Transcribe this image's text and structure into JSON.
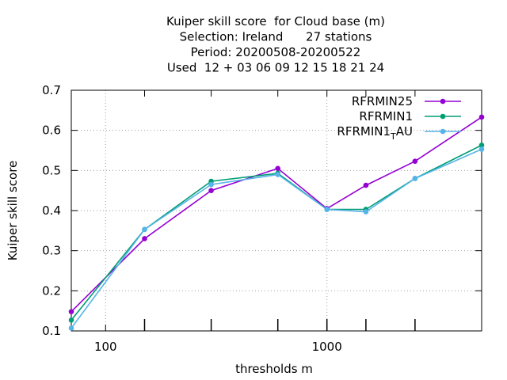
{
  "chart_data": {
    "type": "line",
    "title_lines": [
      "Kuiper skill score  for Cloud base (m)",
      "Selection: Ireland      27 stations",
      "Period: 20200508-20200522",
      "Used  12 + 03 06 09 12 15 18 21 24"
    ],
    "xlabel": "thresholds m",
    "ylabel": "Kuiper skill score",
    "x_scale": "log",
    "xlim": [
      70,
      5000
    ],
    "ylim": [
      0.1,
      0.7
    ],
    "y_ticks": [
      "0.1",
      "0.2",
      "0.3",
      "0.4",
      "0.5",
      "0.6",
      "0.7"
    ],
    "x_tick_labels": [
      "100",
      "1000"
    ],
    "x": [
      70,
      150,
      300,
      600,
      1000,
      1500,
      2500,
      5000
    ],
    "grid": true,
    "legend_position": "top-right",
    "series": [
      {
        "name": "RFRMIN25",
        "color": "#9400d3",
        "values": [
          0.148,
          0.33,
          0.45,
          0.505,
          0.405,
          0.463,
          0.523,
          0.633
        ]
      },
      {
        "name": "RFRMIN1",
        "color": "#009e73",
        "values": [
          0.127,
          0.353,
          0.473,
          0.493,
          0.403,
          0.403,
          0.48,
          0.563
        ]
      },
      {
        "name": "RFRMIN1_T AU",
        "legend_main": "RFRMIN1",
        "legend_sub": "T",
        "legend_tail": "AU",
        "color": "#56b4e9",
        "values": [
          0.107,
          0.353,
          0.465,
          0.49,
          0.403,
          0.397,
          0.48,
          0.553
        ]
      }
    ]
  }
}
